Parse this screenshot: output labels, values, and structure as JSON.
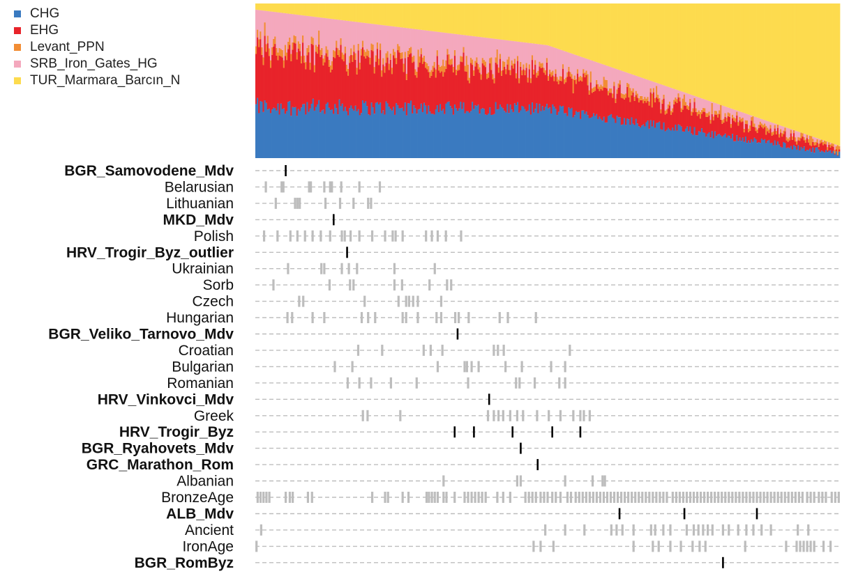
{
  "chart_data": {
    "type": "bar",
    "description": "stacked admixture proportions per individual, sorted; lower panel marks which individuals belong to each population",
    "components": [
      {
        "name": "CHG",
        "color": "#3a7ac0"
      },
      {
        "name": "EHG",
        "color": "#e8232a"
      },
      {
        "name": "Levant_PPN",
        "color": "#f28d34"
      },
      {
        "name": "SRB_Iron_Gates_HG",
        "color": "#f4a8bd"
      },
      {
        "name": "TUR_Marmara_Barcın_N",
        "color": "#fddb4e"
      }
    ],
    "bar_count": 400,
    "profile_note": "approx. mean proportions at start / middle / end of sorted axis",
    "profile": {
      "CHG": [
        0.33,
        0.32,
        0.03
      ],
      "EHG": [
        0.36,
        0.22,
        0.03
      ],
      "Levant_PPN": [
        0.05,
        0.03,
        0.02
      ],
      "SRB_Iron_Gates_HG": [
        0.22,
        0.16,
        0.0
      ],
      "TUR_Marmara_Barcın_N": [
        0.04,
        0.27,
        0.92
      ]
    },
    "rows": [
      {
        "label": "BGR_Samovodene_Mdv",
        "bold": true,
        "marks": [
          0.052
        ]
      },
      {
        "label": "Belarusian",
        "bold": false,
        "marks": [
          0.018,
          0.045,
          0.048,
          0.092,
          0.095,
          0.118,
          0.128,
          0.131,
          0.147,
          0.178,
          0.213
        ]
      },
      {
        "label": "Lithuanian",
        "bold": false,
        "marks": [
          0.035,
          0.068,
          0.072,
          0.076,
          0.12,
          0.145,
          0.168,
          0.193,
          0.198
        ]
      },
      {
        "label": "MKD_Mdv",
        "bold": true,
        "marks": [
          0.134
        ]
      },
      {
        "label": "Polish",
        "bold": false,
        "marks": [
          0.015,
          0.038,
          0.06,
          0.072,
          0.085,
          0.098,
          0.112,
          0.128,
          0.148,
          0.153,
          0.163,
          0.178,
          0.2,
          0.222,
          0.235,
          0.24,
          0.252,
          0.292,
          0.302,
          0.312,
          0.326,
          0.352
        ]
      },
      {
        "label": "HRV_Trogir_Byz_outlier",
        "bold": true,
        "marks": [
          0.157
        ]
      },
      {
        "label": "Ukrainian",
        "bold": false,
        "marks": [
          0.056,
          0.113,
          0.118,
          0.148,
          0.16,
          0.174,
          0.238,
          0.307
        ]
      },
      {
        "label": "Sorb",
        "bold": false,
        "marks": [
          0.031,
          0.127,
          0.162,
          0.168,
          0.238,
          0.251,
          0.298,
          0.328,
          0.335
        ]
      },
      {
        "label": "Czech",
        "bold": false,
        "marks": [
          0.075,
          0.082,
          0.187,
          0.245,
          0.258,
          0.263,
          0.27,
          0.278,
          0.318
        ]
      },
      {
        "label": "Hungarian",
        "bold": false,
        "marks": [
          0.055,
          0.063,
          0.098,
          0.118,
          0.182,
          0.193,
          0.205,
          0.252,
          0.258,
          0.278,
          0.31,
          0.318,
          0.342,
          0.348,
          0.365,
          0.418,
          0.432,
          0.48
        ]
      },
      {
        "label": "BGR_Veliko_Tarnovo_Mdv",
        "bold": true,
        "marks": [
          0.346
        ]
      },
      {
        "label": "Croatian",
        "bold": false,
        "marks": [
          0.176,
          0.217,
          0.288,
          0.3,
          0.32,
          0.408,
          0.415,
          0.425,
          0.538
        ]
      },
      {
        "label": "Bulgarian",
        "bold": false,
        "marks": [
          0.136,
          0.166,
          0.312,
          0.358,
          0.362,
          0.37,
          0.382,
          0.428,
          0.456,
          0.506,
          0.53
        ]
      },
      {
        "label": "Romanian",
        "bold": false,
        "marks": [
          0.158,
          0.178,
          0.198,
          0.232,
          0.276,
          0.364,
          0.446,
          0.452,
          0.478,
          0.52,
          0.53
        ]
      },
      {
        "label": "HRV_Vinkovci_Mdv",
        "bold": true,
        "marks": [
          0.4
        ]
      },
      {
        "label": "Greek",
        "bold": false,
        "marks": [
          0.184,
          0.192,
          0.248,
          0.398,
          0.408,
          0.416,
          0.424,
          0.436,
          0.448,
          0.458,
          0.482,
          0.502,
          0.522,
          0.544,
          0.556,
          0.562,
          0.572
        ]
      },
      {
        "label": "HRV_Trogir_Byz",
        "bold": true,
        "marks": [
          0.341,
          0.374,
          0.44,
          0.508,
          0.556
        ]
      },
      {
        "label": "BGR_Ryahovets_Mdv",
        "bold": true,
        "marks": [
          0.454
        ]
      },
      {
        "label": "GRC_Marathon_Rom",
        "bold": true,
        "marks": [
          0.483
        ]
      },
      {
        "label": "Albanian",
        "bold": false,
        "marks": [
          0.322,
          0.448,
          0.454,
          0.53,
          0.577,
          0.594,
          0.598
        ]
      },
      {
        "label": "BronzeAge",
        "bold": false,
        "marks": [
          0.004,
          0.009,
          0.014,
          0.019,
          0.024,
          0.052,
          0.059,
          0.064,
          0.09,
          0.097,
          0.2,
          0.222,
          0.227,
          0.252,
          0.262,
          0.293,
          0.297,
          0.302,
          0.307,
          0.312,
          0.322,
          0.327,
          0.341,
          0.358,
          0.364,
          0.37,
          0.376,
          0.382,
          0.388,
          0.394,
          0.414,
          0.424,
          0.436,
          0.462,
          0.468,
          0.474,
          0.48,
          0.488,
          0.494,
          0.5,
          0.508,
          0.514,
          0.522,
          0.534,
          0.54,
          0.548,
          0.554,
          0.56,
          0.566,
          0.572,
          0.578,
          0.584,
          0.59,
          0.596,
          0.602,
          0.608,
          0.614,
          0.62,
          0.626,
          0.632,
          0.638,
          0.644,
          0.65,
          0.656,
          0.662,
          0.668,
          0.674,
          0.68,
          0.686,
          0.692,
          0.698,
          0.704,
          0.714,
          0.72,
          0.726,
          0.732,
          0.738,
          0.744,
          0.75,
          0.756,
          0.762,
          0.768,
          0.774,
          0.78,
          0.786,
          0.792,
          0.798,
          0.804,
          0.81,
          0.816,
          0.822,
          0.828,
          0.834,
          0.84,
          0.846,
          0.852,
          0.858,
          0.864,
          0.87,
          0.876,
          0.882,
          0.888,
          0.894,
          0.9,
          0.906,
          0.912,
          0.918,
          0.924,
          0.93,
          0.936,
          0.944,
          0.95,
          0.956,
          0.964,
          0.97,
          0.976,
          0.986,
          0.992,
          0.998
        ]
      },
      {
        "label": "ALB_Mdv",
        "bold": true,
        "marks": [
          0.623,
          0.734,
          0.858
        ]
      },
      {
        "label": "Ancient",
        "bold": false,
        "marks": [
          0.01,
          0.496,
          0.53,
          0.563,
          0.609,
          0.618,
          0.628,
          0.647,
          0.677,
          0.684,
          0.698,
          0.71,
          0.738,
          0.75,
          0.758,
          0.766,
          0.774,
          0.782,
          0.8,
          0.81,
          0.826,
          0.84,
          0.852,
          0.866,
          0.882,
          0.928,
          0.946
        ]
      },
      {
        "label": "IronAge",
        "bold": false,
        "marks": [
          0.002,
          0.476,
          0.488,
          0.51,
          0.647,
          0.68,
          0.69,
          0.71,
          0.728,
          0.748,
          0.76,
          0.77,
          0.838,
          0.908,
          0.926,
          0.932,
          0.938,
          0.944,
          0.95,
          0.956,
          0.972,
          0.984
        ]
      },
      {
        "label": "BGR_RomByz",
        "bold": true,
        "marks": [
          0.8
        ]
      }
    ]
  }
}
